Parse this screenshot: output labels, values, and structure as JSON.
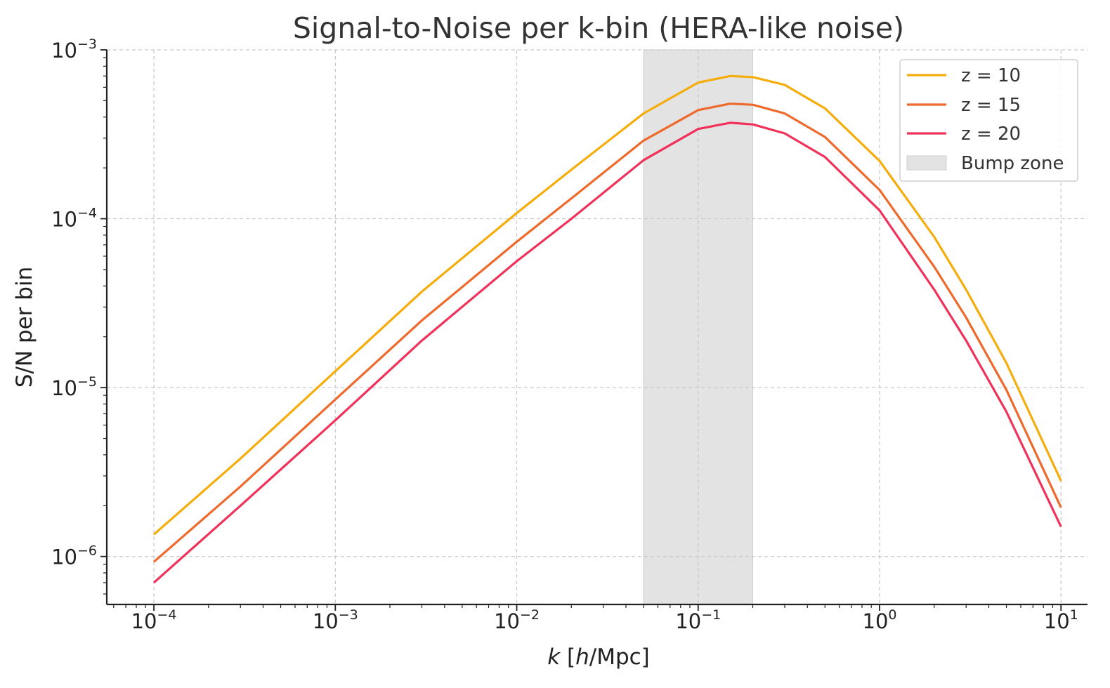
{
  "chart_data": {
    "type": "line",
    "title": "Signal-to-Noise per k-bin (HERA-like noise)",
    "xlabel_italic": "k",
    "xlabel_bracket_open": " [",
    "xlabel_italic2": "h",
    "xlabel_rest": "/Mpc]",
    "ylabel": "S/N per bin",
    "x_scale": "log",
    "y_scale": "log",
    "xlim": [
      5.5e-05,
      14
    ],
    "ylim": [
      5.2e-07,
      0.001
    ],
    "x_ticks": [
      {
        "value": 0.0001,
        "base": "10",
        "exp": "−4"
      },
      {
        "value": 0.001,
        "base": "10",
        "exp": "−3"
      },
      {
        "value": 0.01,
        "base": "10",
        "exp": "−2"
      },
      {
        "value": 0.1,
        "base": "10",
        "exp": "−1"
      },
      {
        "value": 1,
        "base": "10",
        "exp": "0"
      },
      {
        "value": 10,
        "base": "10",
        "exp": "1"
      }
    ],
    "y_ticks": [
      {
        "value": 1e-06,
        "base": "10",
        "exp": "−6"
      },
      {
        "value": 1e-05,
        "base": "10",
        "exp": "−5"
      },
      {
        "value": 0.0001,
        "base": "10",
        "exp": "−4"
      },
      {
        "value": 0.001,
        "base": "10",
        "exp": "−3"
      }
    ],
    "grid": true,
    "legend_position": "top-right",
    "shaded_region": {
      "name": "Bump zone",
      "x_range": [
        0.05,
        0.2
      ],
      "color": "#e3e3e3"
    },
    "series": [
      {
        "name": "z = 10",
        "color": "#f5ad0c",
        "points": [
          [
            0.0001,
            1.35e-06
          ],
          [
            0.0003,
            3.8e-06
          ],
          [
            0.001,
            1.25e-05
          ],
          [
            0.003,
            3.7e-05
          ],
          [
            0.01,
            0.000108
          ],
          [
            0.02,
            0.000195
          ],
          [
            0.05,
            0.00042
          ],
          [
            0.1,
            0.00064
          ],
          [
            0.15,
            0.0007
          ],
          [
            0.2,
            0.00069
          ],
          [
            0.3,
            0.00062
          ],
          [
            0.5,
            0.00045
          ],
          [
            1,
            0.00022
          ],
          [
            2,
            7.8e-05
          ],
          [
            3,
            3.8e-05
          ],
          [
            5,
            1.4e-05
          ],
          [
            10,
            2.8e-06
          ]
        ]
      },
      {
        "name": "z = 15",
        "color": "#ee6a2c",
        "points": [
          [
            0.0001,
            9.3e-07
          ],
          [
            0.0003,
            2.6e-06
          ],
          [
            0.001,
            8.5e-06
          ],
          [
            0.003,
            2.5e-05
          ],
          [
            0.01,
            7.3e-05
          ],
          [
            0.02,
            0.000132
          ],
          [
            0.05,
            0.00029
          ],
          [
            0.1,
            0.00044
          ],
          [
            0.15,
            0.00048
          ],
          [
            0.2,
            0.000473
          ],
          [
            0.3,
            0.00042
          ],
          [
            0.5,
            0.000305
          ],
          [
            1,
            0.000148
          ],
          [
            2,
            5.2e-05
          ],
          [
            3,
            2.6e-05
          ],
          [
            5,
            9.7e-06
          ],
          [
            10,
            1.95e-06
          ]
        ]
      },
      {
        "name": "z = 20",
        "color": "#f0325a",
        "points": [
          [
            0.0001,
            7e-07
          ],
          [
            0.0003,
            2e-06
          ],
          [
            0.001,
            6.4e-06
          ],
          [
            0.003,
            1.9e-05
          ],
          [
            0.01,
            5.6e-05
          ],
          [
            0.02,
            0.0001
          ],
          [
            0.05,
            0.000222
          ],
          [
            0.1,
            0.00034
          ],
          [
            0.15,
            0.00037
          ],
          [
            0.2,
            0.000362
          ],
          [
            0.3,
            0.00032
          ],
          [
            0.5,
            0.000232
          ],
          [
            1,
            0.000112
          ],
          [
            2,
            3.8e-05
          ],
          [
            3,
            1.9e-05
          ],
          [
            5,
            7.2e-06
          ],
          [
            10,
            1.5e-06
          ]
        ]
      }
    ]
  }
}
